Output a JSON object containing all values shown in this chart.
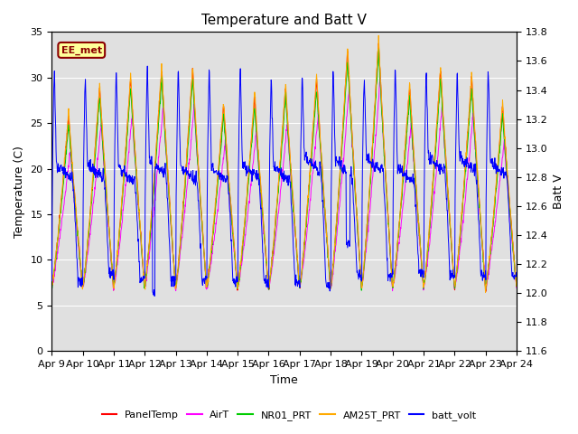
{
  "title": "Temperature and Batt V",
  "xlabel": "Time",
  "ylabel_left": "Temperature (C)",
  "ylabel_right": "Batt V",
  "annotation": "EE_met",
  "xlim": [
    0,
    15
  ],
  "ylim_left": [
    0,
    35
  ],
  "ylim_right": [
    11.6,
    13.8
  ],
  "xtick_labels": [
    "Apr 9",
    "Apr 10",
    "Apr 11",
    "Apr 12",
    "Apr 13",
    "Apr 14",
    "Apr 15",
    "Apr 16",
    "Apr 17",
    "Apr 18",
    "Apr 19",
    "Apr 20",
    "Apr 21",
    "Apr 22",
    "Apr 23",
    "Apr 24"
  ],
  "yticks_left": [
    0,
    5,
    10,
    15,
    20,
    25,
    30,
    35
  ],
  "yticks_right": [
    11.6,
    11.8,
    12.0,
    12.2,
    12.4,
    12.6,
    12.8,
    13.0,
    13.2,
    13.4,
    13.6,
    13.8
  ],
  "legend_entries": [
    "PanelTemp",
    "AirT",
    "NR01_PRT",
    "AM25T_PRT",
    "batt_volt"
  ],
  "colors": {
    "PanelTemp": "#ff0000",
    "AirT": "#ff00ff",
    "NR01_PRT": "#00cc00",
    "AM25T_PRT": "#ffaa00",
    "batt_volt": "#0000ff"
  },
  "background_color": "#e0e0e0",
  "grid_color": "#ffffff",
  "fig_facecolor": "#ffffff",
  "title_fontsize": 11,
  "axis_fontsize": 9,
  "tick_fontsize": 8,
  "max_temps": [
    26,
    29,
    30,
    31,
    31,
    27,
    28,
    29,
    30,
    33,
    34,
    29,
    31,
    30,
    27
  ],
  "min_temp": 7.0,
  "pts_per_day": 96,
  "n_days": 15
}
